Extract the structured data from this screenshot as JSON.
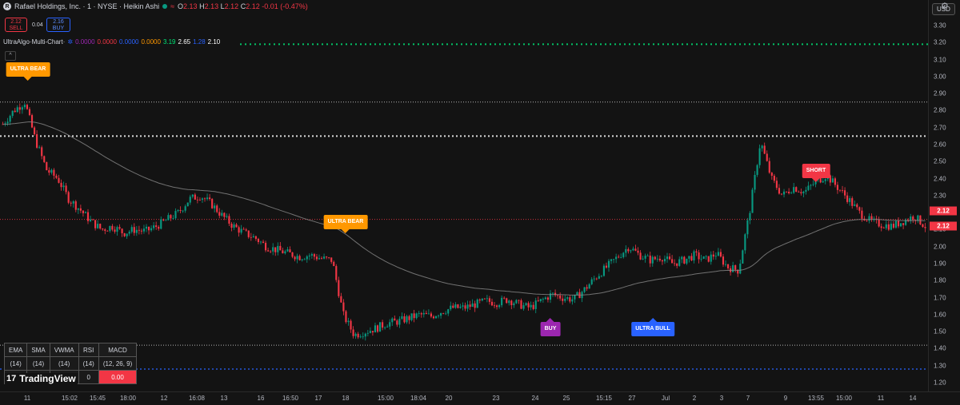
{
  "header": {
    "symbol_line": "Rafael Holdings, Inc. · 1 · NYSE · Heikin Ashi",
    "ohlc": {
      "o_label": "O",
      "o": "2.13",
      "h_label": "H",
      "h": "2.13",
      "l_label": "L",
      "l": "2.12",
      "c_label": "C",
      "c": "2.12",
      "change": "-0.01 (-0.47%)"
    }
  },
  "trade": {
    "sell_price": "2.12",
    "sell_label": "SELL",
    "spread": "0.04",
    "buy_price": "2.16",
    "buy_label": "BUY"
  },
  "indicator": {
    "name": "UltraAlgo·Multi-Chart·",
    "values": [
      {
        "v": "0.0000",
        "color": "#9c27b0"
      },
      {
        "v": "0.0000",
        "color": "#f23645"
      },
      {
        "v": "0.0000",
        "color": "#2962ff"
      },
      {
        "v": "0.0000",
        "color": "#ff9800"
      },
      {
        "v": "3.19",
        "color": "#00e676"
      },
      {
        "v": "2.65",
        "color": "#ffffff"
      },
      {
        "v": "1.28",
        "color": "#2962ff"
      },
      {
        "v": "2.10",
        "color": "#ffffff"
      }
    ]
  },
  "currency": "USD",
  "price_axis": {
    "ticks": [
      "3.30",
      "3.20",
      "3.10",
      "3.00",
      "2.90",
      "2.80",
      "2.70",
      "2.60",
      "2.50",
      "2.40",
      "2.30",
      "2.20",
      "2.10",
      "2.00",
      "1.90",
      "1.80",
      "1.70",
      "1.60",
      "1.50",
      "1.40",
      "1.30",
      "1.20"
    ],
    "last_price_a": "2.12",
    "last_price_b": "2.12"
  },
  "time_axis": [
    "11",
    "15:02",
    "15:45",
    "18:00",
    "12",
    "16:08",
    "13",
    "16",
    "16:50",
    "17",
    "18",
    "15:00",
    "18:04",
    "20",
    "23",
    "24",
    "25",
    "15:15",
    "27",
    "Jul",
    "2",
    "3",
    "7",
    "9",
    "13:55",
    "15:00",
    "11",
    "14"
  ],
  "signals": [
    {
      "label": "ULTRA BEAR",
      "color": "#ff9800",
      "dir": "down"
    },
    {
      "label": "ULTRA BEAR",
      "color": "#ff9800",
      "dir": "down"
    },
    {
      "label": "BUY",
      "color": "#9c27b0",
      "dir": "up"
    },
    {
      "label": "ULTRA BULL",
      "color": "#2962ff",
      "dir": "up"
    },
    {
      "label": "SHORT",
      "color": "#f23645",
      "dir": "down"
    }
  ],
  "table": {
    "headers": [
      "EMA",
      "SMA",
      "VWMA",
      "RSI",
      "MACD"
    ],
    "params": [
      "(14)",
      "(14)",
      "(14)",
      "(14)",
      "(12, 26, 9)"
    ],
    "values": [
      "",
      "",
      "",
      "0",
      "0.00"
    ]
  },
  "brand": "TradingView",
  "chart_data": {
    "type": "candlestick",
    "ylim": [
      1.2,
      3.3
    ],
    "levels": [
      3.19,
      2.85,
      2.65,
      2.16,
      1.42,
      1.28
    ],
    "ohlc_close_series": [
      2.72,
      2.8,
      2.85,
      2.62,
      2.45,
      2.4,
      2.28,
      2.22,
      2.15,
      2.1,
      2.12,
      2.08,
      2.1,
      2.09,
      2.12,
      2.16,
      2.2,
      2.28,
      2.3,
      2.25,
      2.18,
      2.12,
      2.08,
      2.05,
      2.0,
      1.98,
      1.96,
      1.94,
      1.95,
      1.93,
      1.92,
      1.6,
      1.48,
      1.5,
      1.52,
      1.55,
      1.56,
      1.58,
      1.6,
      1.59,
      1.62,
      1.64,
      1.64,
      1.66,
      1.68,
      1.67,
      1.69,
      1.66,
      1.64,
      1.68,
      1.72,
      1.7,
      1.69,
      1.75,
      1.82,
      1.88,
      1.94,
      2.0,
      1.95,
      1.92,
      1.94,
      1.9,
      1.92,
      1.95,
      1.92,
      1.96,
      1.88,
      1.86,
      2.2,
      2.62,
      2.4,
      2.3,
      2.35,
      2.32,
      2.38,
      2.42,
      2.35,
      2.28,
      2.2,
      2.15,
      2.13,
      2.12,
      2.15,
      2.18,
      2.12
    ]
  }
}
